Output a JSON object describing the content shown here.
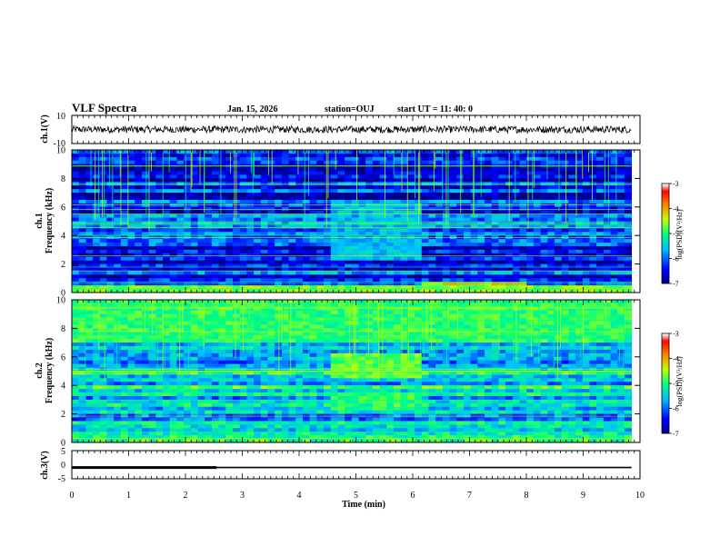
{
  "header": {
    "title": "VLF Spectra",
    "date": "Jan. 15, 2026",
    "station": "station=OUJ",
    "start": "start UT =  11: 40: 0"
  },
  "colors": {
    "colormap": [
      "#000080",
      "#0000ff",
      "#00bfff",
      "#00ff80",
      "#c0ff00",
      "#ff8000",
      "#ff0000",
      "#ffffff"
    ]
  },
  "chart_data": [
    {
      "type": "line",
      "name": "ch1-waveform",
      "ylabel": "ch.1(V)",
      "ylim": [
        -10,
        10
      ],
      "yticks": [
        "10",
        "-10"
      ],
      "xlim": [
        0,
        10
      ],
      "level": 0
    },
    {
      "type": "heatmap",
      "name": "ch1-spectrogram",
      "ylabel": "ch.1\nFrequency (kHz)",
      "ylim": [
        0,
        10
      ],
      "yticks": [
        "0",
        "2",
        "4",
        "6",
        "8",
        "10"
      ],
      "xlim": [
        0,
        10
      ],
      "data_extent": [
        0,
        9.85
      ],
      "colorbar": {
        "label": "log(PSD)(V²/Hz)",
        "range": [
          -7,
          -3
        ],
        "ticks": [
          "-3",
          "-4",
          "-5",
          "-6",
          "-7"
        ]
      },
      "base_level": -6.3,
      "segments": [
        {
          "t0": 4.6,
          "t1": 6.1,
          "f0": 2.2,
          "f1": 6.5,
          "level": -5.6
        },
        {
          "t0": 6.1,
          "t1": 8.0,
          "f0": 0.0,
          "f1": 0.8,
          "level": -4.2
        },
        {
          "t0": 0.0,
          "t1": 9.85,
          "f0": 0.0,
          "f1": 0.6,
          "level": -4.6
        }
      ]
    },
    {
      "type": "heatmap",
      "name": "ch2-spectrogram",
      "ylabel": "ch.2\nFrequency (kHz)",
      "ylim": [
        0,
        10
      ],
      "yticks": [
        "0",
        "2",
        "4",
        "6",
        "8",
        "10"
      ],
      "xlim": [
        0,
        10
      ],
      "data_extent": [
        0,
        9.85
      ],
      "colorbar": {
        "label": "log(PSD)(V²/Hz)",
        "range": [
          -7,
          -3
        ],
        "ticks": [
          "-3",
          "-4",
          "-5",
          "-6",
          "-7"
        ]
      },
      "base_level": -5.4,
      "segments": [
        {
          "t0": 0.0,
          "t1": 9.85,
          "f0": 7.0,
          "f1": 10.0,
          "level": -4.9
        },
        {
          "t0": 4.6,
          "t1": 6.1,
          "f0": 4.5,
          "f1": 6.2,
          "level": -4.7
        },
        {
          "t0": 4.6,
          "t1": 6.1,
          "f0": 2.2,
          "f1": 3.5,
          "level": -4.9
        }
      ]
    },
    {
      "type": "line",
      "name": "ch3-signal",
      "ylabel": "ch.3(V)",
      "ylim": [
        -5,
        5
      ],
      "yticks": [
        "5",
        "0",
        "-5"
      ],
      "xlim": [
        0,
        10
      ],
      "xlabel": "Time (min)",
      "xticks": [
        "0",
        "1",
        "2",
        "3",
        "4",
        "5",
        "6",
        "7",
        "8",
        "9",
        "10"
      ],
      "level": -1,
      "thick_until": 2.55
    }
  ]
}
